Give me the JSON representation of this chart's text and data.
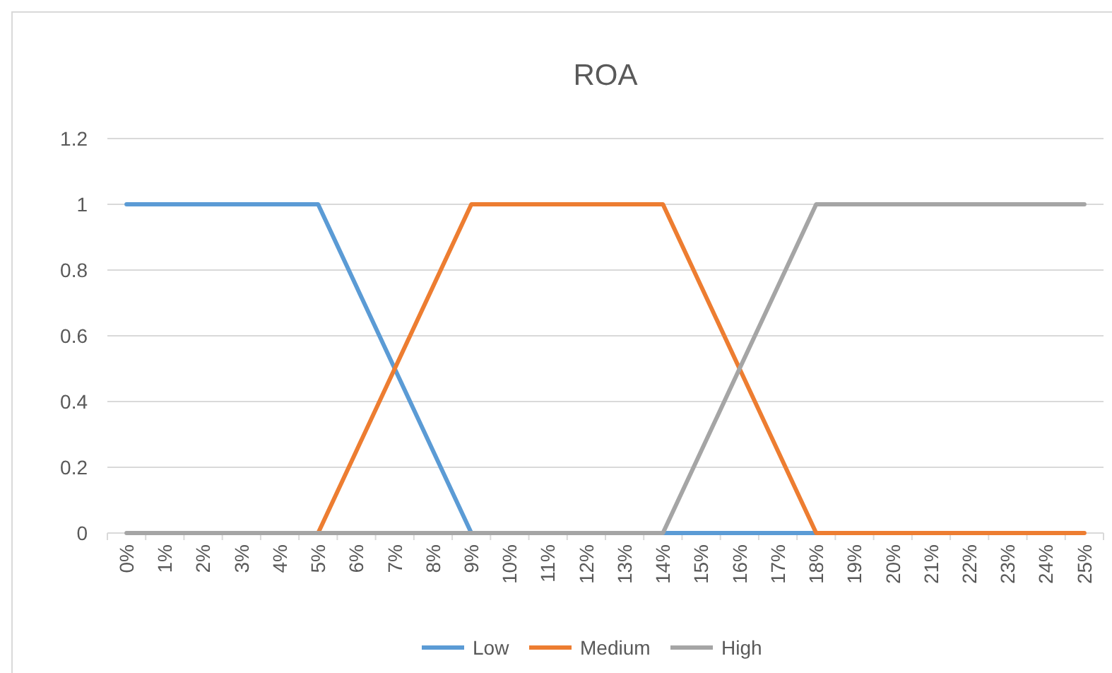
{
  "chart_data": {
    "type": "line",
    "title": "ROA",
    "categories": [
      "0%",
      "1%",
      "2%",
      "3%",
      "4%",
      "5%",
      "6%",
      "7%",
      "8%",
      "9%",
      "10%",
      "11%",
      "12%",
      "13%",
      "14%",
      "15%",
      "16%",
      "17%",
      "18%",
      "19%",
      "20%",
      "21%",
      "22%",
      "23%",
      "24%",
      "25%"
    ],
    "series": [
      {
        "name": "Low",
        "color": "#5b9bd5",
        "values": [
          1,
          1,
          1,
          1,
          1,
          1,
          0.75,
          0.5,
          0.25,
          0,
          0,
          0,
          0,
          0,
          0,
          0,
          0,
          0,
          0,
          null,
          null,
          null,
          null,
          null,
          null,
          null
        ]
      },
      {
        "name": "Medium",
        "color": "#ed7d31",
        "values": [
          null,
          null,
          null,
          null,
          null,
          0,
          0.25,
          0.5,
          0.75,
          1,
          1,
          1,
          1,
          1,
          1,
          0.75,
          0.5,
          0.25,
          0,
          0,
          0,
          0,
          0,
          0,
          0,
          0
        ]
      },
      {
        "name": "High",
        "color": "#a5a5a5",
        "values": [
          0,
          0,
          0,
          0,
          0,
          0,
          0,
          0,
          0,
          0,
          0,
          0,
          0,
          0,
          0,
          0.25,
          0.5,
          0.75,
          1,
          1,
          1,
          1,
          1,
          1,
          1,
          1
        ]
      }
    ],
    "ylim": [
      0,
      1.2
    ],
    "yticks": [
      0,
      0.2,
      0.4,
      0.6,
      0.8,
      1,
      1.2
    ],
    "grid": "y",
    "legend": "bottom",
    "marker": "none",
    "line_style": "solid"
  }
}
